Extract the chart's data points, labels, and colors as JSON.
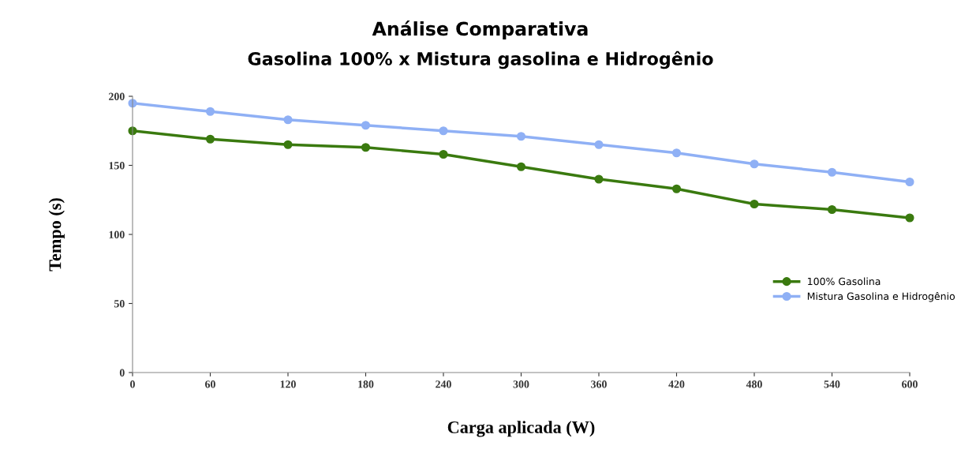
{
  "chart_data": {
    "type": "line",
    "title": "Análise Comparativa",
    "subtitle": "Gasolina 100% x Mistura gasolina e Hidrogênio",
    "xlabel": "Carga aplicada (W)",
    "ylabel": "Tempo (s)",
    "x": [
      0,
      60,
      120,
      180,
      240,
      300,
      360,
      420,
      480,
      540,
      600
    ],
    "series": [
      {
        "name": "100% Gasolina",
        "color": "#3a7a0f",
        "values": [
          175,
          169,
          165,
          163,
          158,
          149,
          140,
          133,
          122,
          118,
          112
        ]
      },
      {
        "name": "Mistura Gasolina e Hidrogênio",
        "color": "#8fb0f5",
        "values": [
          195,
          189,
          183,
          179,
          175,
          171,
          165,
          159,
          151,
          145,
          138
        ]
      }
    ],
    "xlim": [
      0,
      600
    ],
    "xticks": [
      0,
      60,
      120,
      180,
      240,
      300,
      360,
      420,
      480,
      540,
      600
    ],
    "ylim": [
      0,
      200
    ],
    "yticks": [
      0,
      50,
      100,
      150,
      200
    ],
    "grid": false,
    "legend": "right",
    "marker": "circle",
    "line_style": "solid"
  }
}
